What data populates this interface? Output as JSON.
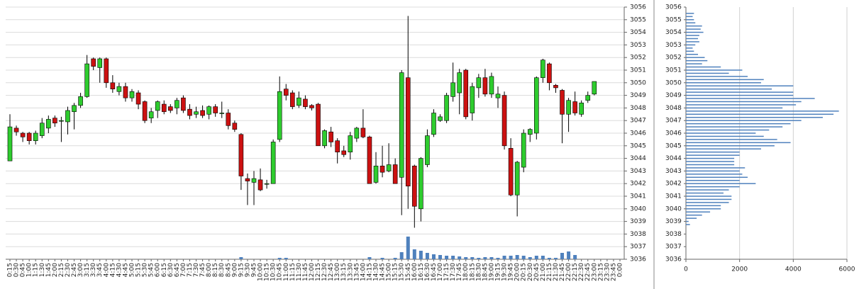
{
  "chart_data": [
    {
      "type": "candlestick",
      "categories": [
        "0:15",
        "0:30",
        "0:45",
        "1:00",
        "1:15",
        "1:30",
        "1:45",
        "2:00",
        "2:15",
        "2:30",
        "2:45",
        "3:00",
        "3:15",
        "3:30",
        "3:45",
        "4:00",
        "4:15",
        "4:30",
        "4:45",
        "5:00",
        "5:15",
        "5:30",
        "5:45",
        "6:00",
        "6:15",
        "6:30",
        "6:45",
        "7:00",
        "7:15",
        "7:30",
        "7:45",
        "8:00",
        "8:15",
        "8:30",
        "8:45",
        "9:00",
        "9:15",
        "9:30",
        "9:45",
        "10:00",
        "10:15",
        "10:30",
        "10:45",
        "11:00",
        "11:15",
        "11:30",
        "11:45",
        "12:00",
        "12:15",
        "12:30",
        "12:45",
        "13:00",
        "13:15",
        "13:30",
        "13:45",
        "14:00",
        "14:15",
        "14:30",
        "14:45",
        "15:00",
        "15:15",
        "15:30",
        "15:45",
        "16:00",
        "16:15",
        "16:30",
        "16:45",
        "17:00",
        "17:15",
        "17:30",
        "17:45",
        "18:00",
        "18:15",
        "18:30",
        "18:45",
        "19:00",
        "19:15",
        "19:30",
        "19:45",
        "20:00",
        "20:15",
        "20:30",
        "20:45",
        "21:00",
        "21:15",
        "21:30",
        "21:45",
        "22:00",
        "22:15",
        "22:30",
        "22:45",
        "23:00",
        "23:15",
        "23:30",
        "23:45",
        "0:00"
      ],
      "open": [
        3043.8,
        3046.4,
        3046,
        3046,
        3045.4,
        3045.8,
        3046.4,
        3047.2,
        3047,
        3046.9,
        3047.7,
        3048.2,
        3048.9,
        3051.9,
        3051.2,
        3051.9,
        3050,
        3049.3,
        3049.7,
        3048.8,
        3049.2,
        3048.5,
        3047.2,
        3047.8,
        3048.3,
        3048.1,
        3048,
        3048.8,
        3047.9,
        3047.5,
        3047.8,
        3047.5,
        3048.1,
        3047.6,
        3047.6,
        3046.8,
        3045.9,
        3042.4,
        3042.1,
        3042.3,
        3042,
        3042,
        3045.5,
        3049.5,
        3049.2,
        3048.2,
        3048.7,
        3048.2,
        3048.3,
        3045,
        3046.1,
        3045.4,
        3044.6,
        3044.5,
        3045.6,
        3046.4,
        3045.7,
        3042.1,
        3043.4,
        3043,
        3043.5,
        3042.5,
        3050.4,
        3043.4,
        3040,
        3043.5,
        3045.9,
        3047,
        3047,
        3048.9,
        3049.2,
        3051,
        3047.6,
        3049.6,
        3050.4,
        3049.1,
        3048.8,
        3049,
        3044.8,
        3041.1,
        3043.3,
        3045.9,
        3046,
        3050.4,
        3051.5,
        3049.8,
        3049.4,
        3047.5,
        3048.5,
        3047.5,
        3048.6,
        3049.1,
        null,
        null,
        null,
        null
      ],
      "high": [
        3047.5,
        3046.6,
        3046.1,
        3046.1,
        3046.2,
        3047.2,
        3047.4,
        3047.4,
        3047.3,
        3048.1,
        3048.4,
        3049.2,
        3052.2,
        3052,
        3052,
        3052,
        3050.6,
        3050,
        3050,
        3049.5,
        3049.4,
        3048.6,
        3048,
        3048.6,
        3048.6,
        3048.3,
        3048.8,
        3049,
        3048.3,
        3048.1,
        3048.2,
        3048.2,
        3048.3,
        3048.5,
        3047.9,
        3047,
        3046,
        3042.8,
        3043,
        3043.2,
        3042.3,
        3045.5,
        3050.5,
        3049.9,
        3049.4,
        3049.3,
        3049,
        3048.3,
        3048.4,
        3046.3,
        3046.5,
        3045.6,
        3045,
        3046.1,
        3046.5,
        3047.9,
        3045.8,
        3044.5,
        3045,
        3045.2,
        3044,
        3051,
        3055.3,
        3043.5,
        3044.1,
        3046.3,
        3047.9,
        3047.5,
        3049.2,
        3051.6,
        3051.1,
        3051.1,
        3050,
        3050.7,
        3051.1,
        3050.8,
        3049.7,
        3049.3,
        3045.6,
        3043.8,
        3046.3,
        3046.4,
        3050.5,
        3051.9,
        3051.6,
        3049.9,
        3049.5,
        3048.8,
        3049.3,
        3048.6,
        3049.3,
        3050.1,
        null,
        null,
        null,
        null
      ],
      "low": [
        3043.8,
        3045.8,
        3045.3,
        3045.1,
        3045.1,
        3045.6,
        3046,
        3046.5,
        3045.3,
        3045.9,
        3046.3,
        3048,
        3048.8,
        3051,
        3050,
        3049.6,
        3049.2,
        3049,
        3048.5,
        3048.5,
        3047.9,
        3046.8,
        3046.8,
        3047.2,
        3047.5,
        3047.6,
        3047.5,
        3047.6,
        3047.1,
        3047.2,
        3047.2,
        3047.1,
        3047.3,
        3047.2,
        3046.3,
        3046.1,
        3041.5,
        3040.3,
        3040.3,
        3041.4,
        3041.6,
        3042,
        3045.3,
        3048.6,
        3047.9,
        3048,
        3047.9,
        3047.8,
        3045,
        3044.8,
        3044.9,
        3043.6,
        3044.1,
        3043.9,
        3045.3,
        3045.6,
        3042,
        3042,
        3042.5,
        3042.9,
        3042,
        3039.5,
        3040,
        3038.5,
        3039,
        3043.3,
        3045.7,
        3046.9,
        3046.8,
        3048.5,
        3047.5,
        3047.1,
        3047,
        3048.8,
        3048.9,
        3048.8,
        3048,
        3044.7,
        3041,
        3039.4,
        3042.9,
        3045.3,
        3045.5,
        3050,
        3049.4,
        3049.2,
        3045.2,
        3046.1,
        3047.4,
        3047.3,
        3048.4,
        3049,
        null,
        null,
        null,
        null
      ],
      "close": [
        3046.5,
        3046.1,
        3045.7,
        3045.4,
        3046,
        3046.8,
        3047.1,
        3046.8,
        3047,
        3047.8,
        3048.2,
        3048.9,
        3051.5,
        3051.3,
        3051.9,
        3050,
        3049.5,
        3049.7,
        3048.8,
        3049.3,
        3048.3,
        3047,
        3047.7,
        3048.5,
        3047.7,
        3047.8,
        3048.6,
        3047.8,
        3047.4,
        3047.7,
        3047.4,
        3048.1,
        3047.6,
        3047.6,
        3046.6,
        3046.3,
        3042.6,
        3042.2,
        3042.4,
        3041.5,
        3042,
        3045.3,
        3049.3,
        3049,
        3048.1,
        3048.8,
        3048.1,
        3048,
        3045,
        3046.2,
        3045.3,
        3044.5,
        3044.3,
        3045.8,
        3046.4,
        3045.7,
        3042,
        3043.4,
        3042.9,
        3043.5,
        3042,
        3050.8,
        3041.8,
        3040.2,
        3044,
        3045.8,
        3047.6,
        3047.3,
        3049,
        3050,
        3050.8,
        3047.3,
        3049.7,
        3050.4,
        3049.1,
        3050.5,
        3049.1,
        3045,
        3041.1,
        3043.7,
        3046,
        3046.3,
        3050.4,
        3051.8,
        3050,
        3049.6,
        3047.5,
        3048.6,
        3047.6,
        3048.4,
        3049,
        3050.1,
        null,
        null,
        null,
        null
      ],
      "volume": [
        0,
        0,
        0,
        0,
        0,
        0,
        0,
        0,
        0,
        0,
        0,
        0,
        0,
        0,
        0,
        0,
        0,
        0,
        0,
        0,
        0,
        0,
        0,
        0,
        0,
        0,
        0,
        0,
        0,
        0,
        0,
        0,
        0,
        0,
        0,
        0,
        3,
        0,
        0,
        0,
        0,
        0,
        2,
        2,
        0,
        0,
        0,
        0,
        0,
        0,
        0,
        0,
        0,
        0,
        0,
        0,
        3,
        0,
        2,
        0,
        2,
        10,
        32,
        14,
        12,
        9,
        7,
        6,
        5,
        5,
        4,
        3,
        3,
        2,
        3,
        3,
        2,
        5,
        5,
        6,
        5,
        3,
        5,
        5,
        2,
        2,
        9,
        11,
        6,
        0,
        0,
        0,
        null,
        null,
        null,
        null
      ],
      "up_color": "#2ecc2e",
      "down_color": "#cc1111",
      "volume_color": "#4f81bd",
      "ylim": [
        3036,
        3056
      ],
      "yticks": [
        3036,
        3037,
        3038,
        3039,
        3040,
        3041,
        3042,
        3043,
        3044,
        3045,
        3046,
        3047,
        3048,
        3049,
        3050,
        3051,
        3052,
        3053,
        3054,
        3055,
        3056
      ],
      "grid": "horizontal"
    },
    {
      "type": "bar",
      "orientation": "horizontal",
      "prices": [
        3055.5,
        3055.25,
        3055,
        3054.75,
        3054.5,
        3054.25,
        3054,
        3053.75,
        3053.5,
        3053.25,
        3053,
        3052.75,
        3052.5,
        3052.25,
        3052,
        3051.75,
        3051.5,
        3051.25,
        3051,
        3050.75,
        3050.5,
        3050.25,
        3050,
        3049.75,
        3049.5,
        3049.25,
        3049,
        3048.75,
        3048.5,
        3048.25,
        3048,
        3047.75,
        3047.5,
        3047.25,
        3047,
        3046.75,
        3046.5,
        3046.25,
        3046,
        3045.75,
        3045.5,
        3045.25,
        3045,
        3044.75,
        3044.5,
        3044.25,
        3044,
        3043.75,
        3043.5,
        3043.25,
        3043,
        3042.75,
        3042.5,
        3042.25,
        3042,
        3041.75,
        3041.5,
        3041.25,
        3041,
        3040.75,
        3040.5,
        3040.25,
        3040,
        3039.75,
        3039.5,
        3039.25,
        3039,
        3038.75
      ],
      "values": [
        300,
        250,
        300,
        350,
        600,
        550,
        650,
        500,
        450,
        500,
        350,
        250,
        300,
        450,
        700,
        800,
        600,
        1300,
        2100,
        1600,
        2300,
        2900,
        2800,
        4000,
        3200,
        4000,
        4000,
        4800,
        4300,
        4100,
        3600,
        5700,
        5500,
        5100,
        4300,
        3900,
        3600,
        3100,
        2600,
        2900,
        3400,
        3900,
        3300,
        2800,
        2000,
        2000,
        1800,
        1800,
        1800,
        2200,
        2000,
        2100,
        2300,
        2000,
        2600,
        2000,
        1600,
        1400,
        1700,
        1700,
        1600,
        1300,
        1300,
        900,
        600,
        400,
        100,
        150
      ],
      "color": "#4f81bd",
      "xlim": [
        0,
        6000
      ],
      "xticks": [
        0,
        2000,
        4000,
        6000
      ],
      "ylim": [
        3036,
        3056
      ],
      "yticks": [
        3036,
        3037,
        3038,
        3039,
        3040,
        3041,
        3042,
        3043,
        3044,
        3045,
        3046,
        3047,
        3048,
        3049,
        3050,
        3051,
        3052,
        3053,
        3054,
        3055,
        3056
      ],
      "grid": "vertical"
    }
  ]
}
